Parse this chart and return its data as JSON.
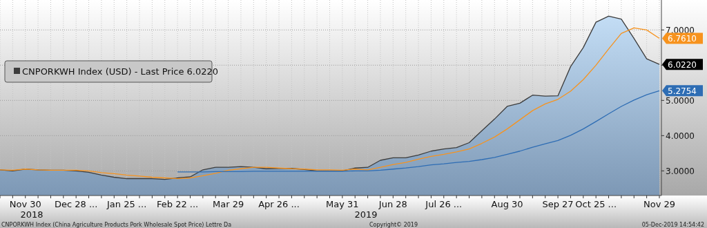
{
  "chart_data": {
    "type": "line",
    "categories": [
      null,
      null,
      "Nov 30",
      null,
      null,
      null,
      "Dec 28 ...",
      null,
      null,
      null,
      "Jan 25 ...",
      null,
      null,
      null,
      "Feb 22 ...",
      null,
      null,
      null,
      "Mar 29",
      null,
      null,
      null,
      "Apr 26 ...",
      null,
      null,
      null,
      null,
      "May 31",
      null,
      null,
      null,
      "Jun 28",
      null,
      null,
      null,
      "Jul 26 ...",
      null,
      null,
      null,
      null,
      "Aug 30",
      null,
      null,
      null,
      "Sep 27",
      null,
      null,
      "Oct 25 ...",
      null,
      null,
      null,
      null,
      "Nov 29"
    ],
    "series": [
      {
        "name": "CNPORKWH Index (USD) - Last Price 6.0220",
        "type": "area",
        "color": "#3c3c3c",
        "values": [
          3.03,
          3.0,
          3.05,
          3.03,
          3.02,
          3.02,
          3.0,
          2.96,
          2.88,
          2.82,
          2.78,
          2.78,
          2.78,
          2.76,
          2.8,
          2.83,
          3.03,
          3.1,
          3.1,
          3.12,
          3.1,
          3.06,
          3.07,
          3.07,
          3.04,
          3.0,
          3.0,
          3.0,
          3.08,
          3.1,
          3.3,
          3.37,
          3.37,
          3.45,
          3.56,
          3.62,
          3.66,
          3.8,
          4.14,
          4.47,
          4.83,
          4.92,
          5.15,
          5.12,
          5.13,
          5.96,
          6.5,
          7.22,
          7.39,
          7.31,
          6.76,
          6.18,
          6.022
        ],
        "value_labels": [
          null,
          null,
          null,
          null,
          null,
          null,
          null,
          null,
          null,
          null,
          null,
          null,
          null,
          null,
          null,
          null,
          null,
          null,
          null,
          null,
          null,
          null,
          null,
          null,
          null,
          null,
          null,
          null,
          null,
          null,
          null,
          null,
          null,
          null,
          null,
          null,
          null,
          null,
          null,
          null,
          null,
          null,
          null,
          null,
          null,
          null,
          null,
          null,
          null,
          null,
          null,
          null,
          "6.0220"
        ]
      },
      {
        "color": "#f7931e",
        "values": [
          3.03,
          3.02,
          3.05,
          3.03,
          3.02,
          3.02,
          3.02,
          3.0,
          2.95,
          2.92,
          2.88,
          2.85,
          2.82,
          2.8,
          2.78,
          2.8,
          2.86,
          2.93,
          3.02,
          3.06,
          3.1,
          3.1,
          3.08,
          3.06,
          3.05,
          3.03,
          3.03,
          3.02,
          3.05,
          3.03,
          3.1,
          3.18,
          3.24,
          3.33,
          3.41,
          3.47,
          3.54,
          3.62,
          3.78,
          3.96,
          4.19,
          4.45,
          4.71,
          4.9,
          5.03,
          5.26,
          5.59,
          6.0,
          6.46,
          6.9,
          7.06,
          7.0,
          6.761
        ],
        "value_labels": [
          null,
          null,
          null,
          null,
          null,
          null,
          null,
          null,
          null,
          null,
          null,
          null,
          null,
          null,
          null,
          null,
          null,
          null,
          null,
          null,
          null,
          null,
          null,
          null,
          null,
          null,
          null,
          null,
          null,
          null,
          null,
          null,
          null,
          null,
          null,
          null,
          null,
          null,
          null,
          null,
          null,
          null,
          null,
          null,
          null,
          null,
          null,
          null,
          null,
          null,
          null,
          null,
          "6.7610"
        ]
      },
      {
        "color": "#2e6db4",
        "values": [
          null,
          null,
          null,
          null,
          null,
          null,
          null,
          null,
          null,
          null,
          null,
          null,
          null,
          null,
          2.97,
          2.97,
          2.97,
          2.98,
          2.98,
          2.98,
          2.99,
          2.99,
          2.99,
          2.99,
          2.99,
          2.99,
          2.99,
          2.99,
          3.0,
          3.0,
          3.02,
          3.05,
          3.08,
          3.12,
          3.17,
          3.2,
          3.24,
          3.27,
          3.32,
          3.38,
          3.47,
          3.56,
          3.67,
          3.77,
          3.86,
          4.01,
          4.19,
          4.4,
          4.62,
          4.83,
          5.01,
          5.16,
          5.2754
        ],
        "value_labels": [
          null,
          null,
          null,
          null,
          null,
          null,
          null,
          null,
          null,
          null,
          null,
          null,
          null,
          null,
          null,
          null,
          null,
          null,
          null,
          null,
          null,
          null,
          null,
          null,
          null,
          null,
          null,
          null,
          null,
          null,
          null,
          null,
          null,
          null,
          null,
          null,
          null,
          null,
          null,
          null,
          null,
          null,
          null,
          null,
          null,
          null,
          null,
          null,
          null,
          null,
          null,
          null,
          "5.2754"
        ]
      }
    ],
    "ylim": [
      2.3,
      7.85
    ],
    "yticks": [
      {
        "value": 3,
        "label": "3.0000"
      },
      {
        "value": 4,
        "label": "4.0000"
      },
      {
        "value": 5,
        "label": "5.0000"
      },
      {
        "value": 6,
        "label": null
      },
      {
        "value": 7,
        "label": "7.0000"
      }
    ],
    "grid": true,
    "legend": "left",
    "marker": "none",
    "line_style": "solid",
    "annotations": [
      "2018",
      "2019",
      "CNPORKWH Index (China Agriculture Products Pork Wholesale Spot Price) Lettre  Da",
      "Copyright© 2019",
      "05-Dec-2019 14:54:42"
    ]
  }
}
